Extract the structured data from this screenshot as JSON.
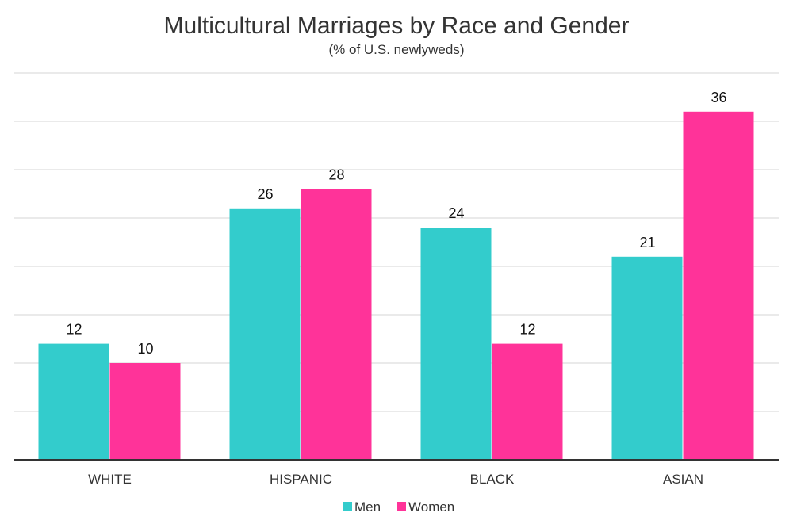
{
  "chart_data": {
    "type": "bar",
    "title": "Multicultural Marriages by Race and Gender",
    "subtitle": "(% of U.S. newlyweds)",
    "categories": [
      "WHITE",
      "HISPANIC",
      "BLACK",
      "ASIAN"
    ],
    "series": [
      {
        "name": "Men",
        "color": "#33CCCC",
        "values": [
          12,
          26,
          24,
          21
        ]
      },
      {
        "name": "Women",
        "color": "#FF3399",
        "values": [
          10,
          28,
          12,
          36
        ]
      }
    ],
    "xlabel": "",
    "ylabel": "",
    "ylim": [
      0,
      40
    ],
    "y_grid_step": 5,
    "grid": true,
    "legend_position": "bottom"
  }
}
